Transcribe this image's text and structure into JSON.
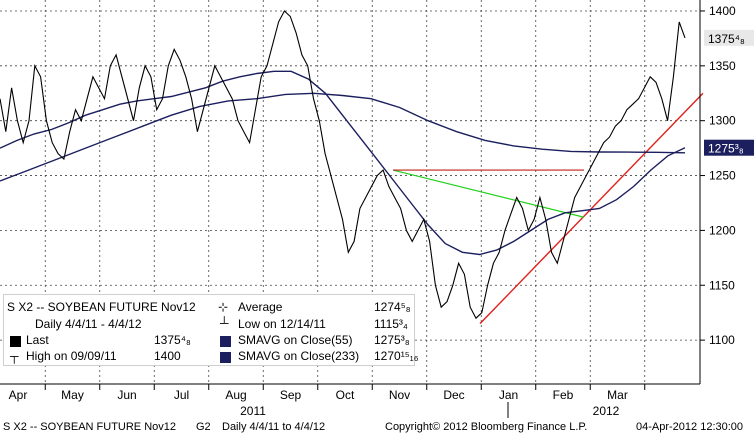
{
  "chart_data": {
    "type": "line",
    "series": [
      {
        "name": "SOYBEAN FUTURE Nov12",
        "values": [
          1320,
          1290,
          1330,
          1300,
          1280,
          1300,
          1350,
          1340,
          1300,
          1280,
          1270,
          1265,
          1290,
          1310,
          1300,
          1320,
          1340,
          1330,
          1320,
          1350,
          1360,
          1340,
          1320,
          1300,
          1330,
          1350,
          1340,
          1310,
          1320,
          1350,
          1365,
          1355,
          1340,
          1320,
          1290,
          1310,
          1330,
          1350,
          1340,
          1330,
          1320,
          1300,
          1290,
          1280,
          1310,
          1340,
          1350,
          1370,
          1390,
          1400,
          1395,
          1380,
          1360,
          1350,
          1320,
          1300,
          1270,
          1250,
          1230,
          1210,
          1180,
          1190,
          1220,
          1230,
          1240,
          1250,
          1255,
          1240,
          1230,
          1220,
          1200,
          1190,
          1200,
          1210,
          1190,
          1150,
          1130,
          1135,
          1150,
          1170,
          1160,
          1130,
          1120,
          1125,
          1150,
          1170,
          1180,
          1200,
          1215,
          1230,
          1220,
          1200,
          1210,
          1230,
          1210,
          1180,
          1170,
          1190,
          1210,
          1230,
          1240,
          1250,
          1260,
          1270,
          1280,
          1285,
          1295,
          1300,
          1310,
          1315,
          1320,
          1330,
          1340,
          1335,
          1320,
          1300,
          1340,
          1390,
          1375.5
        ]
      },
      {
        "name": "SMAVG on Close(55)",
        "values": [
          1275,
          1282,
          1288,
          1292,
          1298,
          1305,
          1310,
          1315,
          1318,
          1320,
          1322,
          1326,
          1330,
          1336,
          1340,
          1343,
          1345,
          1345,
          1338,
          1325,
          1305,
          1285,
          1265,
          1245,
          1225,
          1205,
          1188,
          1180,
          1178,
          1182,
          1190,
          1200,
          1210,
          1216,
          1218,
          1220,
          1228,
          1240,
          1255,
          1268,
          1275.375
        ]
      },
      {
        "name": "SMAVG on Close(233)",
        "values": [
          1245,
          1255,
          1265,
          1275,
          1285,
          1295,
          1305,
          1313,
          1318,
          1320,
          1324,
          1325,
          1323,
          1320,
          1312,
          1300,
          1290,
          1282,
          1277,
          1274,
          1272,
          1271.5,
          1271.4,
          1271.2,
          1270.7
        ]
      }
    ],
    "last": "1375⁴₈",
    "sma55_tag": "1275³₈",
    "ylim": [
      1060,
      1410
    ],
    "yticks": [
      "1400",
      "1350",
      "1300",
      "1250",
      "1200",
      "1150",
      "1100"
    ],
    "xticks": [
      "Apr",
      "May",
      "Jun",
      "Jul",
      "Aug",
      "Sep",
      "Oct",
      "Nov",
      "Dec",
      "Jan",
      "Feb",
      "Mar"
    ],
    "years": [
      "2011",
      "2012"
    ],
    "colors": {
      "price": "#000000",
      "sma55": "#1c1f5e",
      "sma233": "#1c1f5e",
      "trend_up": "#e0201b",
      "trend_down": "#23d01c",
      "resistance": "#c0201b"
    },
    "grid": true,
    "legend_position": "bottom-left"
  },
  "legend": {
    "title": "S X2 -- SOYBEAN FUTURE  Nov12",
    "range": "Daily 4/4/11 - 4/4/12",
    "last_label": "Last",
    "last_value": "1375⁴₈",
    "high_label": "High on 09/09/11",
    "high_value": "1400",
    "avg_label": "Average",
    "avg_value": "1274⁵₈",
    "low_label": "Low on 12/14/11",
    "low_value": "1115³₄",
    "sma55_label": "SMAVG on Close(55)",
    "sma55_value": "1275³₈",
    "sma233_label": "SMAVG on Close(233)",
    "sma233_value": "1270¹⁵₁₆"
  },
  "footer": {
    "left": "S X2 -- SOYBEAN FUTURE  Nov12",
    "g": "G2",
    "range": "Daily  4/4/11 to 4/4/12",
    "copyright": "Copyright© 2012 Bloomberg Finance L.P.",
    "timestamp": "04-Apr-2012 12:30:00"
  }
}
